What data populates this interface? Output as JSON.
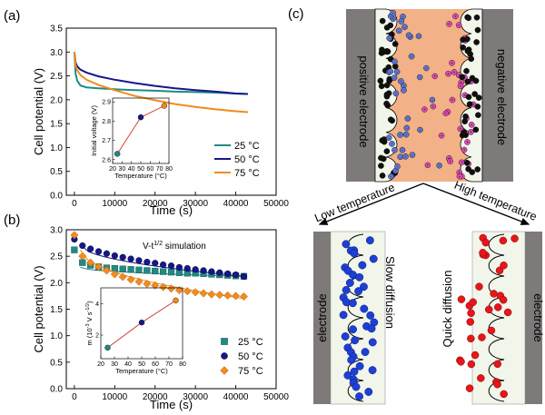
{
  "panels": {
    "a": "(a)",
    "b": "(b)",
    "c": "(c)"
  },
  "colors": {
    "t25": "#1f8a84",
    "t50": "#16168e",
    "t75": "#f28a1e",
    "inset_line": "#d12a2a",
    "electrode": "#7e7a7a",
    "electrolyte": "#f2b186",
    "ion_cold": "#1e3fd6",
    "ion_hot": "#e8151b"
  },
  "chart_data": [
    {
      "type": "line",
      "panel": "(a)",
      "xlabel": "Time (s)",
      "ylabel": "Cell potential (V)",
      "xlim": [
        -2000,
        50000
      ],
      "ylim": [
        0.0,
        3.5
      ],
      "xticks": [
        0,
        10000,
        20000,
        30000,
        40000,
        50000
      ],
      "xtick_labels": [
        "0",
        "10000",
        "20000",
        "30000",
        "40000",
        "50000"
      ],
      "yticks": [
        0.0,
        0.5,
        1.0,
        1.5,
        2.0,
        2.5,
        3.0,
        3.5
      ],
      "ytick_labels": [
        "0.0",
        "0.5",
        "1.0",
        "1.5",
        "2.0",
        "2.5",
        "3.0",
        "3.5"
      ],
      "legend": "bottom-right",
      "series": [
        {
          "name": "25 °C",
          "color_key": "t25",
          "x": [
            0,
            300,
            700,
            1500,
            3000,
            6000,
            10000,
            15000,
            20000,
            25000,
            30000,
            35000,
            40000,
            43000
          ],
          "y": [
            3.0,
            2.55,
            2.4,
            2.3,
            2.26,
            2.24,
            2.22,
            2.2,
            2.19,
            2.17,
            2.16,
            2.15,
            2.13,
            2.12
          ]
        },
        {
          "name": "50 °C",
          "color_key": "t50",
          "x": [
            0,
            300,
            700,
            1500,
            3000,
            6000,
            10000,
            15000,
            20000,
            25000,
            30000,
            35000,
            40000,
            43000
          ],
          "y": [
            3.0,
            2.78,
            2.7,
            2.63,
            2.57,
            2.49,
            2.42,
            2.35,
            2.29,
            2.24,
            2.2,
            2.17,
            2.13,
            2.12
          ]
        },
        {
          "name": "75 °C",
          "color_key": "t75",
          "x": [
            0,
            300,
            700,
            1500,
            3000,
            6000,
            10000,
            15000,
            20000,
            25000,
            30000,
            35000,
            40000,
            43000
          ],
          "y": [
            3.0,
            2.72,
            2.62,
            2.52,
            2.42,
            2.31,
            2.2,
            2.08,
            1.99,
            1.91,
            1.85,
            1.8,
            1.76,
            1.74
          ]
        }
      ],
      "inset": {
        "type": "scatter",
        "xlabel": "Temperature (°C)",
        "ylabel": "Initial voltage (V)",
        "xlim": [
          20,
          80
        ],
        "ylim": [
          2.58,
          2.92
        ],
        "xticks": [
          20,
          30,
          40,
          50,
          60,
          70,
          80
        ],
        "xtick_labels": [
          "20",
          "30",
          "40",
          "50",
          "60",
          "70",
          "80"
        ],
        "yticks": [
          2.6,
          2.7,
          2.8,
          2.9
        ],
        "ytick_labels": [
          "2.6",
          "2.7",
          "2.8",
          "2.9"
        ],
        "x": [
          25,
          50,
          75
        ],
        "y": [
          2.63,
          2.82,
          2.88
        ],
        "point_color_keys": [
          "t25",
          "t50",
          "t75"
        ]
      }
    },
    {
      "type": "scatter",
      "panel": "(b)",
      "title": "V-t",
      "title_sup": "1/2",
      "title_suffix": " simulation",
      "xlabel": "Time (s)",
      "ylabel": "Cell potential (V)",
      "xlim": [
        -2000,
        50000
      ],
      "ylim": [
        0.0,
        3.0
      ],
      "xticks": [
        0,
        10000,
        20000,
        30000,
        40000,
        50000
      ],
      "xtick_labels": [
        "0",
        "10000",
        "20000",
        "30000",
        "40000",
        "50000"
      ],
      "yticks": [
        0.0,
        0.5,
        1.0,
        1.5,
        2.0,
        2.5,
        3.0
      ],
      "ytick_labels": [
        "0.0",
        "0.5",
        "1.0",
        "1.5",
        "2.0",
        "2.5",
        "3.0"
      ],
      "legend": "bottom-right",
      "series": [
        {
          "name": "25 °C",
          "color_key": "t25",
          "marker": "square",
          "x": [
            0,
            2000,
            4000,
            6000,
            8000,
            10000,
            12000,
            14000,
            16000,
            18000,
            20000,
            22000,
            24000,
            26000,
            28000,
            30000,
            32000,
            34000,
            36000,
            38000,
            40000,
            42000
          ],
          "y": [
            2.62,
            2.38,
            2.33,
            2.3,
            2.28,
            2.27,
            2.26,
            2.25,
            2.24,
            2.23,
            2.22,
            2.21,
            2.2,
            2.19,
            2.18,
            2.18,
            2.17,
            2.16,
            2.15,
            2.14,
            2.13,
            2.12
          ],
          "fit": [
            2.29,
            2.12
          ]
        },
        {
          "name": "50 °C",
          "color_key": "t50",
          "marker": "circle",
          "x": [
            0,
            2000,
            4000,
            6000,
            8000,
            10000,
            12000,
            14000,
            16000,
            18000,
            20000,
            22000,
            24000,
            26000,
            28000,
            30000,
            32000,
            34000,
            36000,
            38000,
            40000,
            42000
          ],
          "y": [
            2.82,
            2.7,
            2.64,
            2.59,
            2.55,
            2.51,
            2.48,
            2.45,
            2.42,
            2.39,
            2.37,
            2.34,
            2.32,
            2.29,
            2.27,
            2.25,
            2.23,
            2.21,
            2.19,
            2.17,
            2.15,
            2.12
          ],
          "fit": [
            2.72,
            2.12
          ]
        },
        {
          "name": "75 °C",
          "color_key": "t75",
          "marker": "diamond",
          "x": [
            0,
            2000,
            4000,
            6000,
            8000,
            10000,
            12000,
            14000,
            16000,
            18000,
            20000,
            22000,
            24000,
            26000,
            28000,
            30000,
            32000,
            34000,
            36000,
            38000,
            40000,
            42000
          ],
          "y": [
            2.9,
            2.5,
            2.38,
            2.3,
            2.23,
            2.16,
            2.11,
            2.06,
            2.02,
            1.98,
            1.95,
            1.92,
            1.89,
            1.86,
            1.84,
            1.82,
            1.8,
            1.78,
            1.77,
            1.76,
            1.75,
            1.74
          ],
          "fit": [
            2.62,
            1.7
          ]
        }
      ],
      "inset": {
        "type": "scatter",
        "xlabel": "Temperature (°C)",
        "ylabel_main": "m (10",
        "ylabel_sup1": "-3",
        "ylabel_mid": " V s",
        "ylabel_sup2": "-1/2",
        "ylabel_end": ")",
        "xlim": [
          20,
          80
        ],
        "ylim": [
          0.5,
          5.0
        ],
        "xticks": [
          20,
          30,
          40,
          50,
          60,
          70,
          80
        ],
        "xtick_labels": [
          "20",
          "30",
          "40",
          "50",
          "60",
          "70",
          "80"
        ],
        "yticks": [
          2,
          4
        ],
        "ytick_labels": [
          "2",
          "4"
        ],
        "x": [
          25,
          50,
          75
        ],
        "y": [
          1.2,
          2.8,
          4.2
        ],
        "point_color_keys": [
          "t25",
          "t50",
          "t75"
        ]
      }
    }
  ],
  "schematic": {
    "positive_electrode": "positive electrode",
    "negative_electrode": "negative electrode",
    "low_temperature": "Low temperature",
    "high_temperature": "High temperature",
    "electrode_left": "electrode",
    "electrode_right": "electrode",
    "slow_diffusion": "Slow diffusion",
    "quick_diffusion": "Quick diffusion"
  }
}
